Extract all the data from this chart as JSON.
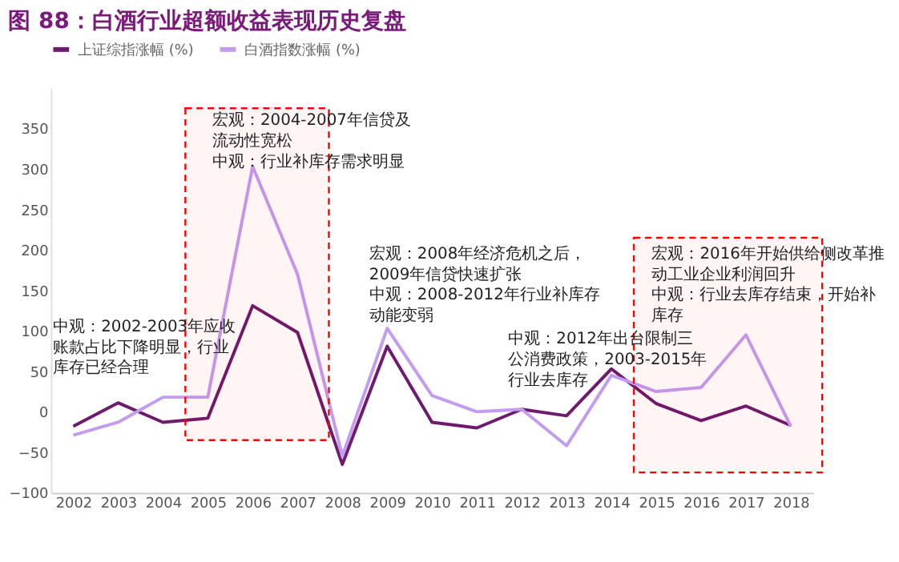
{
  "chart_data": {
    "type": "line",
    "title": "图 88：白酒行业超额收益表现历史复盘",
    "categories": [
      "2002",
      "2003",
      "2004",
      "2005",
      "2006",
      "2007",
      "2008",
      "2009",
      "2010",
      "2011",
      "2012",
      "2013",
      "2014",
      "2015",
      "2016",
      "2017",
      "2018"
    ],
    "series": [
      {
        "name": "上证综指涨幅 (%)",
        "color": "#6e1a6e",
        "values": [
          -18,
          11,
          -13,
          -8,
          131,
          98,
          -65,
          81,
          -13,
          -20,
          3,
          -5,
          53,
          10,
          -11,
          7,
          -17
        ]
      },
      {
        "name": "白酒指数涨幅 (%)",
        "color": "#c39bf0",
        "values": [
          -29,
          -13,
          18,
          18,
          303,
          170,
          -55,
          103,
          20,
          0,
          3,
          -42,
          45,
          25,
          30,
          95,
          -18
        ]
      }
    ],
    "ylim": [
      -100,
      400
    ],
    "yticks": [
      -100,
      -50,
      0,
      50,
      100,
      150,
      200,
      250,
      300,
      350
    ],
    "grid": false,
    "legend": "top",
    "marker": "none",
    "line_style": "solid",
    "bands": [
      {
        "axis": "x",
        "from": "2005",
        "to": "2007",
        "color": "#ff0000"
      },
      {
        "axis": "x",
        "from": "2015",
        "to": "2018",
        "color": "#ff0000"
      }
    ],
    "annotations": [
      "中观：2002-2003年应收账款占比下降明显，行业库存已经合理",
      "宏观：2004-2007年信贷及流动性宽松中观：行业补库存需求明显",
      "宏观：2008年经济危机之后，2009年信贷快速扩张中观：2008-2012年行业补库存动能变弱",
      "中观：2012年出台限制三公消费政策，2003-2015年行业去库存",
      "宏观：2016年开始供给侧改革推动工业企业利润回升中观：行业去库存结束，开始补库存"
    ]
  }
}
